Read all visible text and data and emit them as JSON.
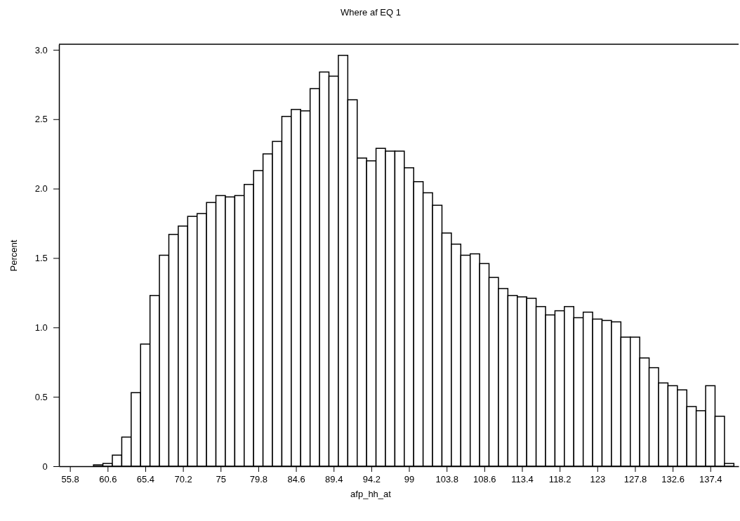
{
  "chart_data": {
    "type": "histogram",
    "title": "Where af EQ 1",
    "xlabel": "afp_hh_at",
    "ylabel": "Percent",
    "bins": [
      55.2,
      56.4,
      57.6,
      58.8,
      60,
      61.2,
      62.4,
      63.6,
      64.8,
      66,
      67.2,
      68.4,
      69.6,
      70.8,
      72,
      73.2,
      74.4,
      75.6,
      76.8,
      78,
      79.2,
      80.4,
      81.6,
      82.8,
      84,
      85.2,
      86.4,
      87.6,
      88.8,
      90,
      91.2,
      92.4,
      93.6,
      94.8,
      96,
      97.2,
      98.4,
      99.6,
      100.8,
      102,
      103.2,
      104.4,
      105.6,
      106.8,
      108,
      109.2,
      110.4,
      111.6,
      112.8,
      114,
      115.2,
      116.4,
      117.6,
      118.8,
      120,
      121.2,
      122.4,
      123.6,
      124.8,
      126,
      127.2,
      128.4,
      129.6,
      130.8,
      132,
      133.2,
      134.4,
      135.6,
      136.8,
      138,
      139.2,
      140.4
    ],
    "values": [
      0,
      0,
      0,
      0.01,
      0.02,
      0.08,
      0.21,
      0.53,
      0.88,
      1.23,
      1.52,
      1.67,
      1.73,
      1.8,
      1.82,
      1.9,
      1.95,
      1.94,
      1.95,
      2.03,
      2.13,
      2.25,
      2.34,
      2.52,
      2.57,
      2.56,
      2.72,
      2.84,
      2.81,
      2.96,
      2.64,
      2.22,
      2.2,
      2.29,
      2.27,
      2.27,
      2.15,
      2.05,
      1.97,
      1.88,
      1.68,
      1.6,
      1.52,
      1.53,
      1.46,
      1.36,
      1.28,
      1.23,
      1.22,
      1.21,
      1.15,
      1.09,
      1.12,
      1.15,
      1.07,
      1.11,
      1.06,
      1.05,
      1.04,
      0.93,
      0.93,
      0.78,
      0.71,
      0.6,
      0.58,
      0.55,
      0.43,
      0.4,
      0.58,
      0.36,
      0.02
    ],
    "color": "#ffffff",
    "xlim": [
      54.4,
      141.0
    ],
    "xticks": [
      55.8,
      60.6,
      65.4,
      70.2,
      75,
      79.8,
      84.6,
      89.4,
      94.2,
      99,
      103.8,
      108.6,
      113.4,
      118.2,
      123,
      127.8,
      132.6,
      137.4
    ],
    "ylim": [
      0,
      3.04
    ],
    "yticks": [
      0,
      {
        "value": 0.5,
        "label": "0.5"
      },
      {
        "value": 1,
        "label": "1.0"
      },
      {
        "value": 1.5,
        "label": "1.5"
      },
      {
        "value": 2,
        "label": "2.0"
      },
      {
        "value": 2.5,
        "label": "2.5"
      },
      {
        "value": 3,
        "label": "3.0"
      }
    ],
    "grid": false
  }
}
